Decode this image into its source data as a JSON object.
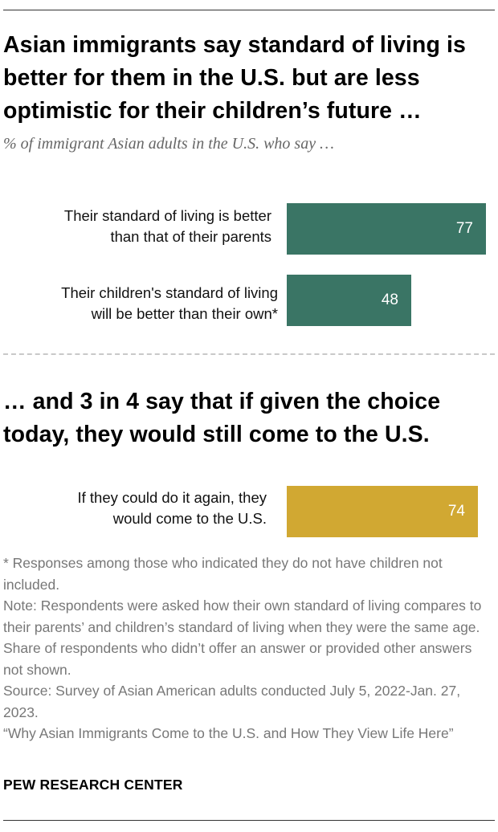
{
  "header": {
    "title": "Asian immigrants say standard of living is better for them in the U.S. but are less optimistic for their children’s future …",
    "subtitle": "% of immigrant Asian adults in the U.S. who say …",
    "second_title": "… and 3 in 4 say that if given the choice today, they would still come to the U.S."
  },
  "colors": {
    "green": "#3a7565",
    "gold": "#d1a832"
  },
  "chart_data": [
    {
      "type": "bar",
      "orientation": "horizontal",
      "categories": [
        "Their standard of living is better than that of their parents",
        "Their children's standard of living will be better than their own*"
      ],
      "values": [
        77,
        48
      ],
      "xlim": [
        0,
        100
      ],
      "color": "#3a7565"
    },
    {
      "type": "bar",
      "orientation": "horizontal",
      "categories": [
        "If they could do it again, they would come to the U.S."
      ],
      "values": [
        74
      ],
      "xlim": [
        0,
        100
      ],
      "color": "#d1a832"
    }
  ],
  "labels": {
    "row1_line1": "Their standard of living is better",
    "row1_line2": "than that of their parents",
    "row2_line1": "Their children's standard of living",
    "row2_line2": "will be better than their own*",
    "row3_line1": "If they could do it again, they",
    "row3_line2": "would come to the U.S."
  },
  "notes": {
    "asterisk": "* Responses among those who indicated they do not have children not included.",
    "note": "Note: Respondents were asked how their own standard of living compares to their parents’ and children’s standard of living when they were the same age. Share of respondents who didn’t offer an answer or provided other answers not shown.",
    "source": "Source: Survey of Asian American adults conducted July 5, 2022-Jan. 27, 2023.",
    "report": "“Why Asian Immigrants Come to the U.S. and How They View Life Here”"
  },
  "footer": {
    "brand": "PEW RESEARCH CENTER"
  }
}
